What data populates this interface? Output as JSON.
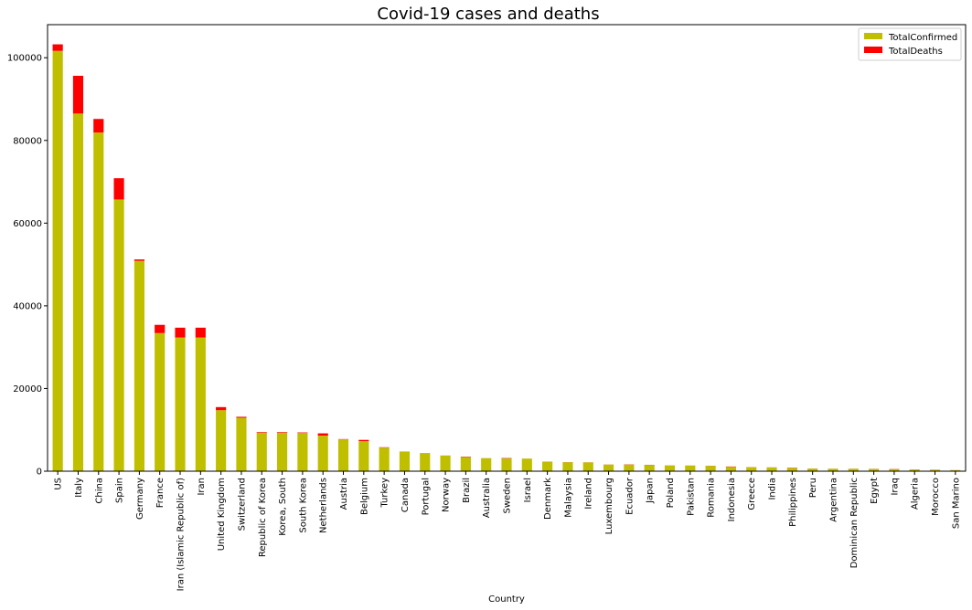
{
  "chart_data": {
    "type": "bar",
    "stacked": true,
    "title": "Covid-19 cases and deaths",
    "xlabel": "Country",
    "ylabel": "",
    "ylim": [
      0,
      108000
    ],
    "yticks": [
      0,
      20000,
      40000,
      60000,
      80000,
      100000
    ],
    "grid": false,
    "legend_position": "top-right",
    "categories": [
      "US",
      "Italy",
      "China",
      "Spain",
      "Germany",
      "France",
      "Iran (Islamic Republic of)",
      "Iran",
      "United Kingdom",
      "Switzerland",
      "Republic of Korea",
      "Korea, South",
      "South Korea",
      "Netherlands",
      "Austria",
      "Belgium",
      "Turkey",
      "Canada",
      "Portugal",
      "Norway",
      "Brazil",
      "Australia",
      "Sweden",
      "Israel",
      "Denmark",
      "Malaysia",
      "Ireland",
      "Luxembourg",
      "Ecuador",
      "Japan",
      "Poland",
      "Pakistan",
      "Romania",
      "Indonesia",
      "Greece",
      "India",
      "Philippines",
      "Peru",
      "Argentina",
      "Dominican Republic",
      "Egypt",
      "Iraq",
      "Algeria",
      "Morocco",
      "San Marino"
    ],
    "series": [
      {
        "name": "TotalConfirmed",
        "color": "#bfbf00",
        "values": [
          101657,
          86498,
          81897,
          65719,
          50871,
          33402,
          32332,
          32332,
          14745,
          12928,
          9332,
          9332,
          9241,
          8603,
          7697,
          7284,
          5698,
          4675,
          4268,
          3771,
          3417,
          3143,
          3069,
          3035,
          2201,
          2161,
          2121,
          1605,
          1595,
          1499,
          1389,
          1373,
          1292,
          1046,
          966,
          918,
          803,
          635,
          589,
          581,
          536,
          506,
          409,
          345,
          223
        ]
      },
      {
        "name": "TotalDeaths",
        "color": "#ff0000",
        "values": [
          1581,
          9134,
          3299,
          5138,
          342,
          1997,
          2378,
          2378,
          761,
          231,
          139,
          139,
          131,
          547,
          68,
          289,
          92,
          55,
          76,
          19,
          92,
          13,
          105,
          10,
          65,
          26,
          22,
          18,
          58,
          49,
          16,
          11,
          26,
          87,
          26,
          19,
          54,
          18,
          13,
          20,
          30,
          42,
          25,
          23,
          25
        ]
      }
    ]
  }
}
